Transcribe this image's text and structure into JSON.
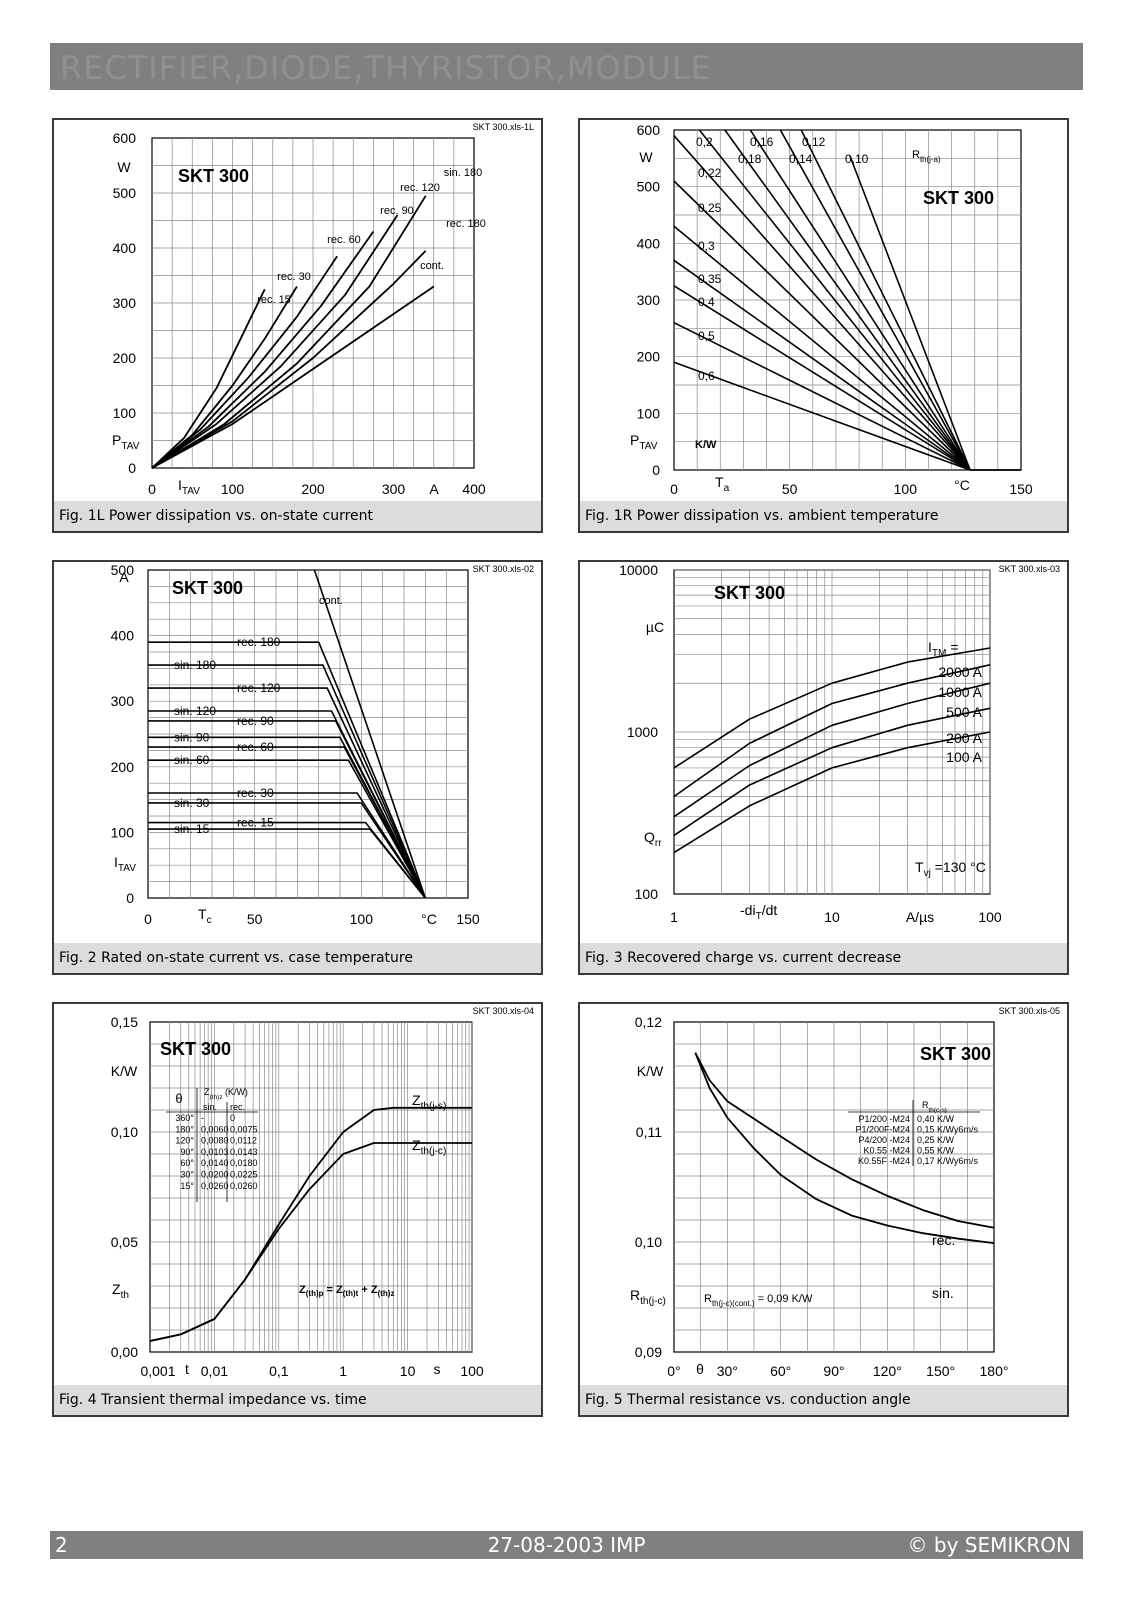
{
  "header": {
    "title": "RECTIFIER,DIODE,THYRISTOR,MODULE"
  },
  "footer": {
    "page": "2",
    "date": "27-08-2003  IMP",
    "copyright": "© by SEMIKRON"
  },
  "chart_data": [
    {
      "id": "fig1l",
      "type": "line",
      "caption": "Fig. 1L Power dissipation vs. on-state current",
      "file_tag": "SKT 300.xls-1L",
      "device": "SKT 300",
      "x_unit": "A",
      "y_unit": "W",
      "y_label_main": "P",
      "y_label_sub": "TAV",
      "x_label_main": "I",
      "x_label_sub": "TAV",
      "xlim": [
        0,
        400
      ],
      "ylim": [
        0,
        600
      ],
      "x_ticks": [
        "0",
        "100",
        "200",
        "300",
        "400"
      ],
      "y_ticks": [
        "0",
        "100",
        "200",
        "300",
        "400",
        "500",
        "600"
      ],
      "series": [
        {
          "name": "rec. 15",
          "x": [
            0,
            40,
            80,
            110,
            140
          ],
          "y": [
            0,
            55,
            145,
            235,
            325
          ]
        },
        {
          "name": "rec. 30",
          "x": [
            0,
            50,
            100,
            140,
            180
          ],
          "y": [
            0,
            60,
            150,
            235,
            330
          ]
        },
        {
          "name": "rec. 60",
          "x": [
            0,
            60,
            120,
            180,
            230
          ],
          "y": [
            0,
            70,
            165,
            275,
            385
          ]
        },
        {
          "name": "rec. 90",
          "x": [
            0,
            70,
            140,
            210,
            275
          ],
          "y": [
            0,
            75,
            175,
            295,
            430
          ]
        },
        {
          "name": "rec. 120",
          "x": [
            0,
            80,
            160,
            240,
            305
          ],
          "y": [
            0,
            80,
            185,
            315,
            460
          ]
        },
        {
          "name": "sin. 180",
          "x": [
            0,
            90,
            180,
            270,
            340
          ],
          "y": [
            0,
            80,
            190,
            330,
            495
          ]
        },
        {
          "name": "rec. 180",
          "x": [
            0,
            100,
            200,
            300,
            340
          ],
          "y": [
            0,
            85,
            200,
            335,
            395
          ]
        },
        {
          "name": "cont.",
          "x": [
            0,
            100,
            200,
            300,
            350
          ],
          "y": [
            0,
            80,
            180,
            280,
            330
          ]
        }
      ]
    },
    {
      "id": "fig1r",
      "type": "line",
      "caption": "Fig. 1R Power dissipation vs. ambient temperature",
      "file_tag": "",
      "device": "SKT 300",
      "x_unit": "°C",
      "y_unit": "W",
      "y_label_main": "P",
      "y_label_sub": "TAV",
      "x_label_main": "T",
      "x_label_sub": "a",
      "param_unit": "K/W",
      "legend_title_main": "R",
      "legend_title_sub": "th(j-a)",
      "xlim": [
        0,
        150
      ],
      "ylim": [
        0,
        600
      ],
      "x_ticks": [
        "0",
        "50",
        "100",
        "150"
      ],
      "y_ticks": [
        "0",
        "100",
        "200",
        "300",
        "400",
        "500",
        "600"
      ],
      "series": [
        {
          "name": "0,10",
          "x": [
            76,
            128
          ],
          "y": [
            555,
            0
          ]
        },
        {
          "name": "0,12",
          "x": [
            55,
            128
          ],
          "y": [
            600,
            0
          ]
        },
        {
          "name": "0,14",
          "x": [
            46,
            128
          ],
          "y": [
            600,
            0
          ]
        },
        {
          "name": "0,16",
          "x": [
            33,
            128
          ],
          "y": [
            600,
            0
          ]
        },
        {
          "name": "0,18",
          "x": [
            22,
            128
          ],
          "y": [
            600,
            0
          ]
        },
        {
          "name": "0,2",
          "x": [
            11,
            128
          ],
          "y": [
            600,
            0
          ]
        },
        {
          "name": "0,22",
          "x": [
            0,
            128
          ],
          "y": [
            590,
            0
          ]
        },
        {
          "name": "0,25",
          "x": [
            0,
            128
          ],
          "y": [
            510,
            0
          ]
        },
        {
          "name": "0,3",
          "x": [
            0,
            128
          ],
          "y": [
            430,
            0
          ]
        },
        {
          "name": "0,35",
          "x": [
            0,
            128
          ],
          "y": [
            370,
            0
          ]
        },
        {
          "name": "0,4",
          "x": [
            0,
            128
          ],
          "y": [
            325,
            0
          ]
        },
        {
          "name": "0,5",
          "x": [
            0,
            128
          ],
          "y": [
            260,
            0
          ]
        },
        {
          "name": "0,6",
          "x": [
            0,
            128
          ],
          "y": [
            190,
            0
          ]
        }
      ]
    },
    {
      "id": "fig2",
      "type": "line",
      "caption": "Fig. 2 Rated on-state current vs. case temperature",
      "file_tag": "SKT 300.xls-02",
      "device": "SKT 300",
      "x_unit": "°C",
      "y_unit": "A",
      "y_label_main": "I",
      "y_label_sub": "TAV",
      "x_label_main": "T",
      "x_label_sub": "c",
      "xlim": [
        0,
        150
      ],
      "ylim": [
        0,
        500
      ],
      "x_ticks": [
        "0",
        "50",
        "100",
        "150"
      ],
      "y_ticks": [
        "0",
        "100",
        "200",
        "300",
        "400",
        "500"
      ],
      "series": [
        {
          "name": "cont.",
          "x": [
            78,
            130
          ],
          "y": [
            500,
            0
          ]
        },
        {
          "name": "rec. 180",
          "x": [
            0,
            80,
            130
          ],
          "y": [
            390,
            390,
            0
          ]
        },
        {
          "name": "sin. 180",
          "x": [
            0,
            82,
            130
          ],
          "y": [
            355,
            355,
            0
          ]
        },
        {
          "name": "rec. 120",
          "x": [
            0,
            84,
            130
          ],
          "y": [
            320,
            320,
            0
          ]
        },
        {
          "name": "sin. 120",
          "x": [
            0,
            86,
            130
          ],
          "y": [
            285,
            285,
            0
          ]
        },
        {
          "name": "rec. 90",
          "x": [
            0,
            88,
            130
          ],
          "y": [
            270,
            270,
            0
          ]
        },
        {
          "name": "sin. 90",
          "x": [
            0,
            90,
            130
          ],
          "y": [
            245,
            245,
            0
          ]
        },
        {
          "name": "rec. 60",
          "x": [
            0,
            92,
            130
          ],
          "y": [
            230,
            230,
            0
          ]
        },
        {
          "name": "sin. 60",
          "x": [
            0,
            94,
            130
          ],
          "y": [
            210,
            210,
            0
          ]
        },
        {
          "name": "rec. 30",
          "x": [
            0,
            98,
            130
          ],
          "y": [
            160,
            160,
            0
          ]
        },
        {
          "name": "sin. 30",
          "x": [
            0,
            100,
            130
          ],
          "y": [
            145,
            145,
            0
          ]
        },
        {
          "name": "rec. 15",
          "x": [
            0,
            102,
            130
          ],
          "y": [
            115,
            115,
            0
          ]
        },
        {
          "name": "sin. 15",
          "x": [
            0,
            104,
            130
          ],
          "y": [
            105,
            105,
            0
          ]
        }
      ]
    },
    {
      "id": "fig3",
      "type": "line",
      "caption": "Fig. 3 Recovered charge vs. current decrease",
      "file_tag": "SKT 300.xls-03",
      "device": "SKT 300",
      "x_unit": "A/µs",
      "y_unit": "µC",
      "y_label_main": "Q",
      "y_label_sub": "rr",
      "x_label_main": "-di",
      "x_label_sub": "T",
      "x_label_tail": "/dt",
      "param_label": "I",
      "param_sub": "TM",
      "param_tail": " =",
      "condition_main": "T",
      "condition_sub": "vj",
      "condition_tail": " =130 °C",
      "x_scale": "log",
      "y_scale": "log",
      "xlim": [
        1,
        100
      ],
      "ylim": [
        100,
        10000
      ],
      "x_ticks": [
        "1",
        "10",
        "100"
      ],
      "y_ticks": [
        "100",
        "1000",
        "10000"
      ],
      "series": [
        {
          "name": "2000 A",
          "x": [
            1,
            3,
            10,
            30,
            100
          ],
          "y": [
            600,
            1200,
            2000,
            2700,
            3300
          ]
        },
        {
          "name": "1000 A",
          "x": [
            1,
            3,
            10,
            30,
            100
          ],
          "y": [
            400,
            850,
            1500,
            2000,
            2600
          ]
        },
        {
          "name": "500 A",
          "x": [
            1,
            3,
            10,
            30,
            100
          ],
          "y": [
            300,
            620,
            1100,
            1500,
            2000
          ]
        },
        {
          "name": "200 A",
          "x": [
            1,
            3,
            10,
            30,
            100
          ],
          "y": [
            230,
            470,
            800,
            1100,
            1400
          ]
        },
        {
          "name": "100 A",
          "x": [
            1,
            3,
            10,
            30,
            100
          ],
          "y": [
            180,
            350,
            600,
            800,
            1000
          ]
        }
      ]
    },
    {
      "id": "fig4",
      "type": "line",
      "caption": "Fig. 4 Transient thermal impedance vs. time",
      "file_tag": "SKT 300.xls-04",
      "device": "SKT 300",
      "x_unit": "s",
      "y_unit": "K/W",
      "y_label_main": "Z",
      "y_label_sub": "th",
      "x_label": "t",
      "x_scale": "log",
      "xlim": [
        0.001,
        100
      ],
      "ylim": [
        0,
        0.15
      ],
      "x_ticks": [
        "0,001",
        "0,01",
        "0,1",
        "1",
        "10",
        "100"
      ],
      "y_ticks": [
        "0,00",
        "0,05",
        "0,10",
        "0,15"
      ],
      "formula": {
        "a": "Z",
        "a_sub": "(th)p",
        "eq": " = Z",
        "b_sub": "(th)t",
        "plus": " + Z",
        "c_sub": "(th)z"
      },
      "table": {
        "head_theta": "θ",
        "head_z": "Z",
        "head_z_sub": "(th)z",
        "head_z_tail": " (K/W)",
        "cols": [
          "sin.",
          "rec."
        ],
        "rows": [
          [
            "360°",
            "-",
            "0"
          ],
          [
            "180°",
            "0,0060",
            "0,0075"
          ],
          [
            "120°",
            "0,0080",
            "0,0112"
          ],
          [
            "90°",
            "0,0103",
            "0,0143"
          ],
          [
            "60°",
            "0,0140",
            "0,0180"
          ],
          [
            "30°",
            "0,0200",
            "0,0225"
          ],
          [
            "15°",
            "0,0260",
            "0,0260"
          ]
        ]
      },
      "series": [
        {
          "name": "Z",
          "name_sub": "th(j-s)",
          "x": [
            0.001,
            0.003,
            0.01,
            0.03,
            0.1,
            0.3,
            1,
            3,
            6,
            100
          ],
          "y": [
            0.005,
            0.008,
            0.015,
            0.033,
            0.058,
            0.08,
            0.1,
            0.11,
            0.111,
            0.111
          ]
        },
        {
          "name": "Z",
          "name_sub": "th(j-c)",
          "x": [
            0.001,
            0.003,
            0.01,
            0.03,
            0.1,
            0.3,
            1,
            3,
            6,
            100
          ],
          "y": [
            0.005,
            0.008,
            0.015,
            0.033,
            0.056,
            0.074,
            0.09,
            0.095,
            0.095,
            0.095
          ]
        }
      ]
    },
    {
      "id": "fig5",
      "type": "line",
      "caption": "Fig. 5 Thermal resistance vs. conduction angle",
      "file_tag": "SKT 300.xls-05",
      "device": "SKT 300",
      "x_unit": "",
      "y_unit": "K/W",
      "y_label_main": "R",
      "y_label_sub": "th(j-c)",
      "x_label": "θ",
      "xlim": [
        0,
        180
      ],
      "ylim": [
        0.09,
        0.12
      ],
      "x_ticks": [
        "0°",
        "30°",
        "60°",
        "90°",
        "120°",
        "150°",
        "180°"
      ],
      "y_ticks": [
        "0,09",
        "0,10",
        "0,11",
        "0,12"
      ],
      "note": {
        "main": "R",
        "sub": "th(j-c)(cont.)",
        "tail": " = 0,09 K/W"
      },
      "table": {
        "head_main": "R",
        "head_sub": "th(c-s)",
        "rows": [
          [
            "P1/200  -M24",
            "0,40 K/W"
          ],
          [
            "P1/200F-M24",
            "0,15 K/Wy6m/s"
          ],
          [
            "P4/200  -M24",
            "0,25 K/W"
          ],
          [
            "K0.55   -M24",
            "0,55 K/W"
          ],
          [
            "K0.55F  -M24",
            "0,17 K/Wy6m/s"
          ]
        ]
      },
      "series": [
        {
          "name": "rec.",
          "x": [
            12,
            20,
            30,
            45,
            60,
            80,
            100,
            120,
            140,
            160,
            180
          ],
          "y": [
            0.1172,
            0.1147,
            0.1128,
            0.1112,
            0.1096,
            0.1075,
            0.1057,
            0.1042,
            0.1029,
            0.1019,
            0.1013
          ]
        },
        {
          "name": "sin.",
          "x": [
            12,
            20,
            30,
            45,
            60,
            80,
            100,
            120,
            140,
            160,
            180
          ],
          "y": [
            0.1172,
            0.114,
            0.1113,
            0.1085,
            0.1061,
            0.1039,
            0.1024,
            0.1015,
            0.1008,
            0.1003,
            0.0999
          ]
        }
      ]
    }
  ]
}
